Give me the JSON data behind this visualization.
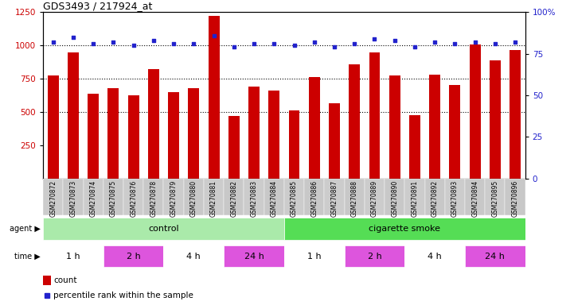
{
  "title": "GDS3493 / 217924_at",
  "samples": [
    "GSM270872",
    "GSM270873",
    "GSM270874",
    "GSM270875",
    "GSM270876",
    "GSM270878",
    "GSM270879",
    "GSM270880",
    "GSM270881",
    "GSM270882",
    "GSM270883",
    "GSM270884",
    "GSM270885",
    "GSM270886",
    "GSM270887",
    "GSM270888",
    "GSM270889",
    "GSM270890",
    "GSM270891",
    "GSM270892",
    "GSM270893",
    "GSM270894",
    "GSM270895",
    "GSM270896"
  ],
  "counts": [
    775,
    950,
    635,
    680,
    625,
    820,
    650,
    680,
    1220,
    470,
    690,
    660,
    510,
    760,
    565,
    855,
    950,
    775,
    475,
    780,
    700,
    1005,
    890,
    965
  ],
  "percentile": [
    82,
    85,
    81,
    82,
    80,
    83,
    81,
    81,
    86,
    79,
    81,
    81,
    80,
    82,
    79,
    81,
    84,
    83,
    79,
    82,
    81,
    82,
    81,
    82
  ],
  "ylim_left": [
    0,
    1250
  ],
  "ylim_right": [
    0,
    100
  ],
  "yticks_left": [
    250,
    500,
    750,
    1000,
    1250
  ],
  "yticks_right": [
    0,
    25,
    50,
    75,
    100
  ],
  "bar_color": "#cc0000",
  "dot_color": "#2222cc",
  "grid_color": "#000000",
  "agent_control_color": "#aaeaaa",
  "agent_smoke_color": "#55dd55",
  "time_white_color": "#ffffff",
  "time_pink_color": "#dd55dd",
  "sample_bg_color": "#cccccc",
  "bg_color": "#ffffff",
  "tick_color_left": "#cc0000",
  "tick_color_right": "#2222cc",
  "time_groups": [
    {
      "label": "1 h",
      "start": 0,
      "end": 3,
      "pink": false
    },
    {
      "label": "2 h",
      "start": 3,
      "end": 6,
      "pink": true
    },
    {
      "label": "4 h",
      "start": 6,
      "end": 9,
      "pink": false
    },
    {
      "label": "24 h",
      "start": 9,
      "end": 12,
      "pink": true
    },
    {
      "label": "1 h",
      "start": 12,
      "end": 15,
      "pink": false
    },
    {
      "label": "2 h",
      "start": 15,
      "end": 18,
      "pink": true
    },
    {
      "label": "4 h",
      "start": 18,
      "end": 21,
      "pink": false
    },
    {
      "label": "24 h",
      "start": 21,
      "end": 24,
      "pink": true
    }
  ]
}
